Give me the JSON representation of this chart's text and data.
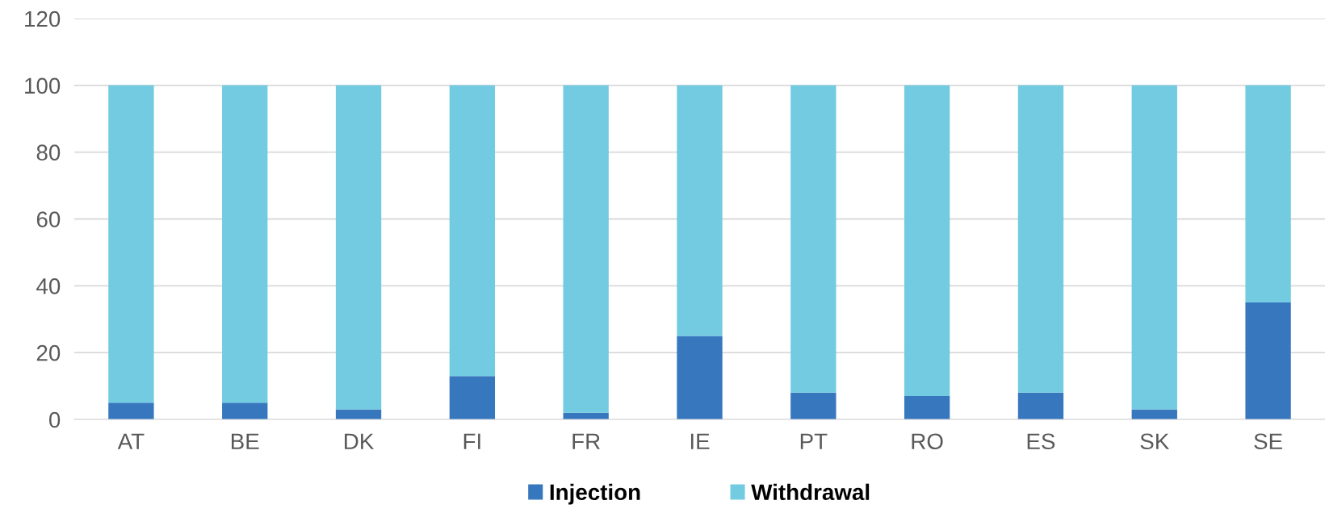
{
  "chart_data": {
    "type": "bar",
    "stacked": true,
    "categories": [
      "AT",
      "BE",
      "DK",
      "FI",
      "FR",
      "IE",
      "PT",
      "RO",
      "ES",
      "SK",
      "SE"
    ],
    "series": [
      {
        "name": "Injection",
        "color": "#3677be",
        "values": [
          5,
          5,
          3,
          13,
          2,
          25,
          8,
          7,
          8,
          3,
          35
        ]
      },
      {
        "name": "Withdrawal",
        "color": "#72cbe0",
        "values": [
          95,
          95,
          97,
          87,
          98,
          75,
          92,
          93,
          92,
          97,
          65
        ]
      }
    ],
    "ylim": [
      0,
      120
    ],
    "yticks": [
      0,
      20,
      40,
      60,
      80,
      100,
      120
    ],
    "grid": "y",
    "legend": "bottom"
  }
}
